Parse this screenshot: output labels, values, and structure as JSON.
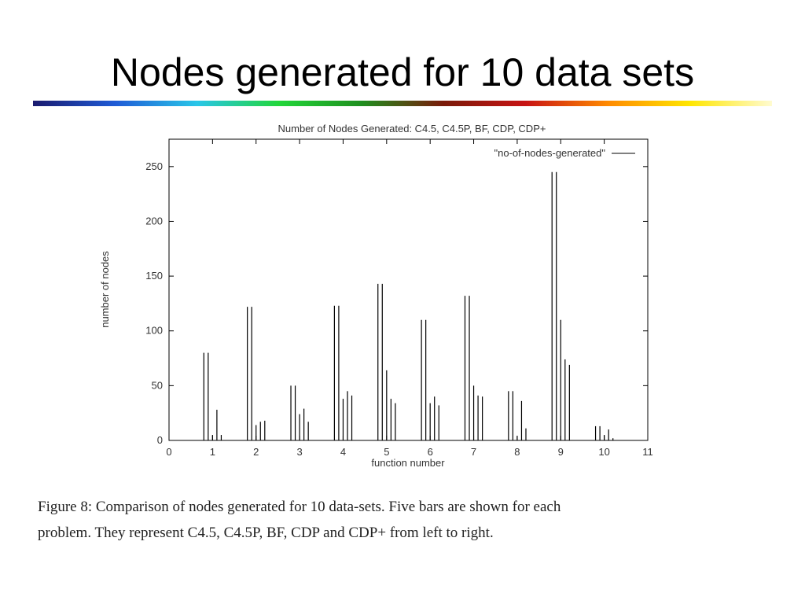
{
  "slide": {
    "title": "Nodes generated for 10 data sets",
    "caption_line1": "Figure 8:  Comparison of nodes generated for 10 data-sets.  Five bars are shown for each",
    "caption_line2": "problem. They represent C4.5, C4.5P, BF, CDP and CDP+ from left to right."
  },
  "colors": {
    "title_rule_gradient": [
      "#1a1a6e",
      "#1f5bd6",
      "#29c6e8",
      "#22d63a",
      "#1f8f1f",
      "#7a1a0a",
      "#c81414",
      "#ff8a00",
      "#ffe600",
      "#fffbd0"
    ],
    "bar_stroke": "#000000",
    "axis": "#000000"
  },
  "chart_data": {
    "type": "bar",
    "title": "Number of Nodes Generated: C4.5, C4.5P, BF, CDP, CDP+",
    "xlabel": "function number",
    "ylabel": "number of nodes",
    "legend": {
      "label": "\"no-of-nodes-generated\"",
      "placement": "top-right"
    },
    "xlim": [
      0,
      11
    ],
    "ylim": [
      0,
      275
    ],
    "x_ticks": [
      "0",
      "1",
      "2",
      "3",
      "4",
      "5",
      "6",
      "7",
      "8",
      "9",
      "10",
      "11"
    ],
    "y_ticks": [
      "0",
      "50",
      "100",
      "150",
      "200",
      "250"
    ],
    "categories": [
      "1",
      "2",
      "3",
      "4",
      "5",
      "6",
      "7",
      "8",
      "9",
      "10"
    ],
    "series": [
      {
        "name": "C4.5",
        "values": [
          80,
          122,
          50,
          123,
          143,
          110,
          132,
          45,
          245,
          13
        ]
      },
      {
        "name": "C4.5P",
        "values": [
          80,
          122,
          50,
          123,
          143,
          110,
          132,
          45,
          245,
          13
        ]
      },
      {
        "name": "BF",
        "values": [
          5,
          14,
          24,
          38,
          64,
          34,
          50,
          4,
          110,
          5
        ]
      },
      {
        "name": "CDP",
        "values": [
          28,
          17,
          29,
          45,
          38,
          40,
          41,
          36,
          74,
          10
        ]
      },
      {
        "name": "CDP+",
        "values": [
          5,
          18,
          17,
          41,
          34,
          32,
          40,
          11,
          69,
          2
        ]
      }
    ],
    "grid": false
  }
}
